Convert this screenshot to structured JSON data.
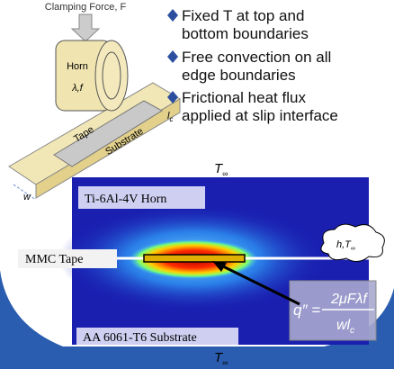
{
  "schematic": {
    "force_label": "Clamping Force, F",
    "horn": "Horn",
    "horn_params": "λ,f",
    "tape": "Tape",
    "substrate": "Substrate",
    "contact_length": "l",
    "contact_length_sub": "c",
    "width": "w"
  },
  "bullets": [
    [
      "Fixed T at top and",
      "bottom boundaries"
    ],
    [
      "Free convection on all",
      "edge boundaries"
    ],
    [
      "Frictional heat flux",
      "applied at slip interface"
    ]
  ],
  "simulation": {
    "top_temp": "T",
    "top_temp_sub": "∞",
    "bottom_temp": "T",
    "bottom_temp_sub": "∞",
    "horn_label": "Ti-6Al-4V Horn",
    "tape_label": "MMC Tape",
    "substrate_label": "AA 6061-T6 Substrate",
    "convection": "h,T",
    "convection_sub": "∞"
  },
  "formula": {
    "lhs": "q″ =",
    "numerator": "2μFλf",
    "denominator": "wl",
    "denominator_sub": "c"
  }
}
